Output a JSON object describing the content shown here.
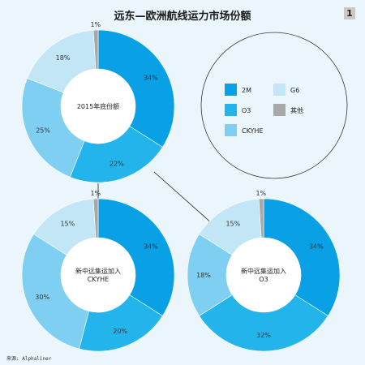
{
  "header": {
    "title": "远东—欧洲航线运力市场份额",
    "page_number": "1"
  },
  "source": "来源: Alphaliner",
  "colors": {
    "2M": "#0aa0e6",
    "O3": "#22b4ea",
    "CKYHE": "#7fcff2",
    "G6": "#c3e6f6",
    "其他": "#a8a8a8"
  },
  "chart_data": [
    {
      "type": "pie",
      "center_label": [
        "2015年底份额"
      ],
      "slices": [
        {
          "name": "2M",
          "value": 34,
          "label": "34%"
        },
        {
          "name": "O3",
          "value": 22,
          "label": "22%"
        },
        {
          "name": "CKYHE",
          "value": 25,
          "label": "25%"
        },
        {
          "name": "G6",
          "value": 18,
          "label": "18%"
        },
        {
          "name": "其他",
          "value": 1,
          "label": "1%"
        }
      ]
    },
    {
      "type": "pie",
      "center_label": [
        "新中远集运加入",
        "CKYHE"
      ],
      "slices": [
        {
          "name": "2M",
          "value": 34,
          "label": "34%"
        },
        {
          "name": "O3",
          "value": 20,
          "label": "20%"
        },
        {
          "name": "CKYHE",
          "value": 30,
          "label": "30%"
        },
        {
          "name": "G6",
          "value": 15,
          "label": "15%"
        },
        {
          "name": "其他",
          "value": 1,
          "label": "1%"
        }
      ]
    },
    {
      "type": "pie",
      "center_label": [
        "新中远集运加入",
        "O3"
      ],
      "slices": [
        {
          "name": "2M",
          "value": 34,
          "label": "34%"
        },
        {
          "name": "O3",
          "value": 32,
          "label": "32%"
        },
        {
          "name": "CKYHE",
          "value": 18,
          "label": "18%"
        },
        {
          "name": "G6",
          "value": 15,
          "label": "15%"
        },
        {
          "name": "其他",
          "value": 1,
          "label": "1%"
        }
      ]
    }
  ],
  "legend": {
    "items": [
      {
        "name": "2M",
        "label": "2M"
      },
      {
        "name": "G6",
        "label": "G6"
      },
      {
        "name": "O3",
        "label": "O3"
      },
      {
        "name": "其他",
        "label": "其他"
      },
      {
        "name": "CKYHE",
        "label": "CKYHE"
      }
    ]
  }
}
